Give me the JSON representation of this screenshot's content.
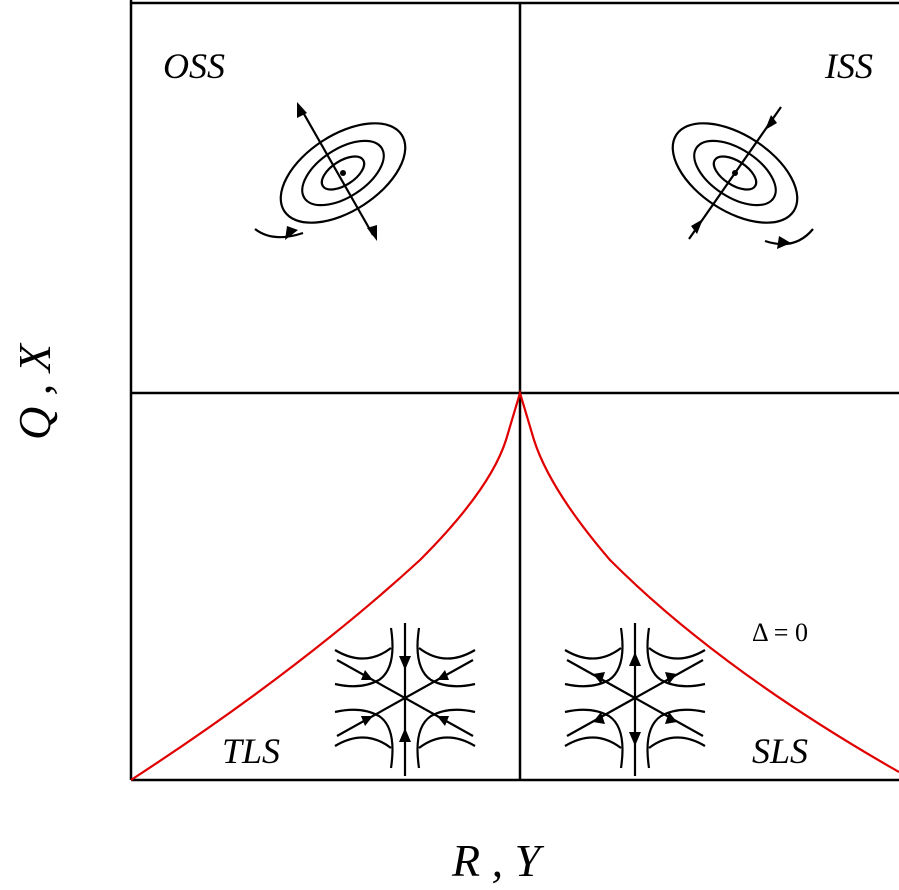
{
  "regions": {
    "top_left": "OSS",
    "top_right": "ISS",
    "bottom_left": "TLS",
    "bottom_right": "SLS"
  },
  "boundary_label": "Δ = 0",
  "axes": {
    "x_label": "R , Y",
    "y_label": "Q , X"
  },
  "colors": {
    "boundary_curve": "#e00000",
    "lines": "#000000"
  },
  "icons": {
    "top_left": "outward-spiral-saddle-icon",
    "top_right": "inward-spiral-saddle-icon",
    "bottom_left": "three-saddle-flow-icon",
    "bottom_right": "three-saddle-flow-icon"
  }
}
